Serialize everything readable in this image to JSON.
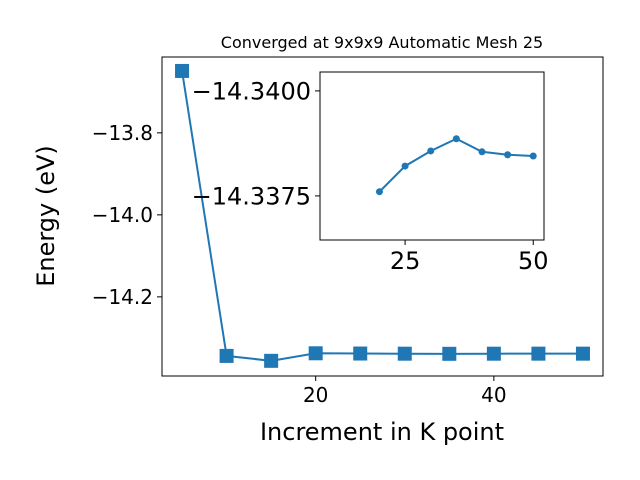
{
  "chart_data": [
    {
      "type": "line",
      "title": "Converged at 9x9x9 Automatic Mesh 25",
      "x_label": "Increment in K point",
      "y_label": "Energy (eV)",
      "x": [
        5,
        10,
        15,
        20,
        25,
        30,
        35,
        40,
        45,
        50
      ],
      "series": [
        {
          "color": "#1f77b4",
          "marker": "square",
          "values": [
            -13.649,
            -14.344,
            -14.356,
            -14.3376,
            -14.3382,
            -14.3386,
            -14.3389,
            -14.3386,
            -14.3385,
            -14.3385
          ]
        }
      ],
      "xlim": [
        2.75,
        52.25
      ],
      "ylim": [
        -14.393,
        -13.615
      ],
      "xticks": [
        20,
        40
      ],
      "yticks": [
        {
          "value": -13.8,
          "label": "−13.8"
        },
        {
          "value": -14.0,
          "label": "−14.0"
        },
        {
          "value": -14.2,
          "label": "−14.2"
        }
      ]
    },
    {
      "type": "line",
      "x": [
        20,
        25,
        30,
        35,
        40,
        45,
        50
      ],
      "series": [
        {
          "color": "#1f77b4",
          "marker": "circle",
          "values": [
            -14.3376,
            -14.33821,
            -14.33857,
            -14.33886,
            -14.33855,
            -14.33848,
            -14.33845
          ]
        }
      ],
      "xlim": [
        8.4,
        52.1
      ],
      "ylim": [
        -14.33645,
        -14.34045
      ],
      "xticks": [
        25,
        50
      ],
      "yticks": [
        {
          "value": -14.34,
          "label": "−14.3400"
        },
        {
          "value": -14.3375,
          "label": "−14.3375"
        }
      ]
    }
  ]
}
